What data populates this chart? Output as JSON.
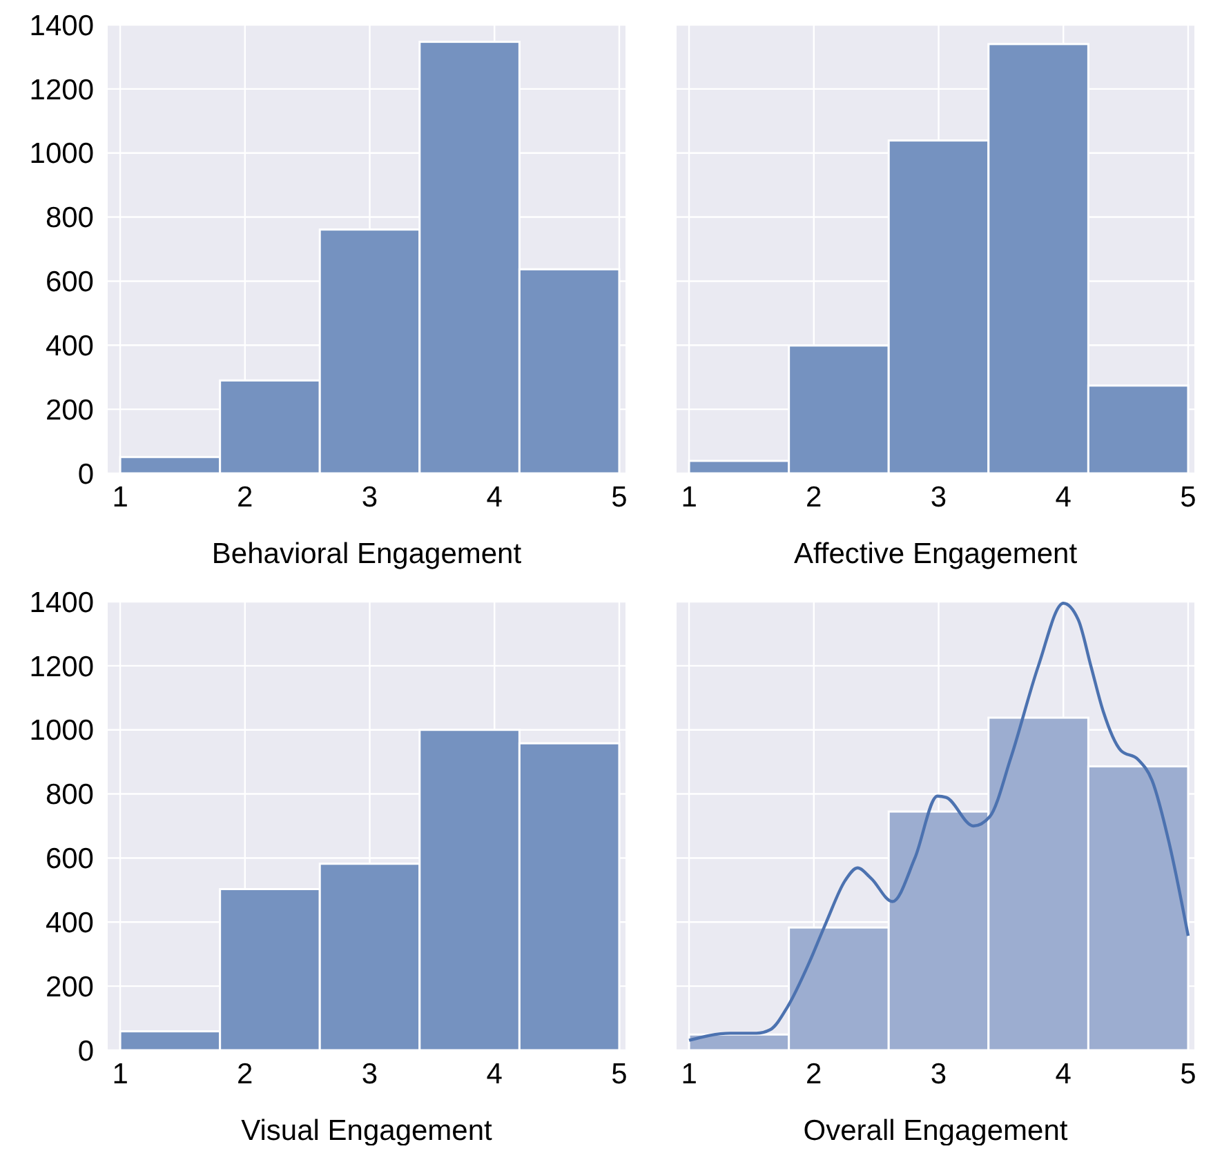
{
  "chart_data": [
    {
      "type": "histogram",
      "xlabel": "Behavioral Engagement",
      "bins": [
        1,
        1.8,
        2.6,
        3.4,
        4.2,
        5
      ],
      "values": [
        51,
        290,
        761,
        1347,
        637
      ],
      "color": "#7592c0",
      "xlim": [
        0.9,
        5.05
      ],
      "ylim": [
        0,
        1400
      ],
      "xticks": [
        1,
        2,
        3,
        4,
        5
      ],
      "yticks": [
        0,
        200,
        400,
        600,
        800,
        1000,
        1200,
        1400
      ],
      "grid": true
    },
    {
      "type": "histogram",
      "xlabel": "Affective Engagement",
      "bins": [
        1,
        1.8,
        2.6,
        3.4,
        4.2,
        5
      ],
      "values": [
        39,
        399,
        1039,
        1340,
        274
      ],
      "color": "#7592c0",
      "xlim": [
        0.9,
        5.05
      ],
      "ylim": [
        0,
        1400
      ],
      "xticks": [
        1,
        2,
        3,
        4,
        5
      ],
      "yticks": [
        0,
        200,
        400,
        600,
        800,
        1000,
        1200,
        1400
      ],
      "grid": true,
      "tick_labels": "x"
    },
    {
      "type": "histogram",
      "xlabel": "Visual Engagement",
      "bins": [
        1,
        1.8,
        2.6,
        3.4,
        4.2,
        5
      ],
      "values": [
        59,
        503,
        582,
        1000,
        958
      ],
      "color": "#7592c0",
      "xlim": [
        0.9,
        5.05
      ],
      "ylim": [
        0,
        1400
      ],
      "xticks": [
        1,
        2,
        3,
        4,
        5
      ],
      "yticks": [
        0,
        200,
        400,
        600,
        800,
        1000,
        1200,
        1400
      ],
      "grid": true
    },
    {
      "type": "histogram",
      "xlabel": "Overall Engagement",
      "bins": [
        1,
        1.8,
        2.6,
        3.4,
        4.2,
        5
      ],
      "xlim": [
        0.9,
        5.05
      ],
      "ylim": [
        0,
        1400
      ],
      "xticks": [
        1,
        2,
        3,
        4,
        5
      ],
      "yticks": [
        0,
        200,
        400,
        600,
        800,
        1000,
        1200,
        1400
      ],
      "grid": true,
      "tick_labels": "x",
      "series": [
        {
          "type": "histogram",
          "color": "#9cadd0",
          "values": [
            49,
            383,
            745,
            1038,
            886
          ]
        },
        {
          "type": "line",
          "color": "#4c72b0",
          "x": [
            1,
            1.33,
            1.54,
            1.65,
            1.79,
            1.96,
            2.1,
            2.25,
            2.35,
            2.46,
            2.63,
            2.81,
            2.99,
            3.06,
            3.28,
            3.41,
            3.58,
            3.8,
            4,
            4.12,
            4.22,
            4.32,
            4.46,
            4.6,
            4.71,
            4.85,
            5
          ],
          "values": [
            31,
            53,
            53,
            64,
            136,
            271,
            400,
            529,
            569,
            536,
            464,
            600,
            793,
            789,
            700,
            729,
            914,
            1200,
            1395,
            1343,
            1200,
            1057,
            936,
            907,
            843,
            643,
            357
          ]
        }
      ]
    }
  ]
}
